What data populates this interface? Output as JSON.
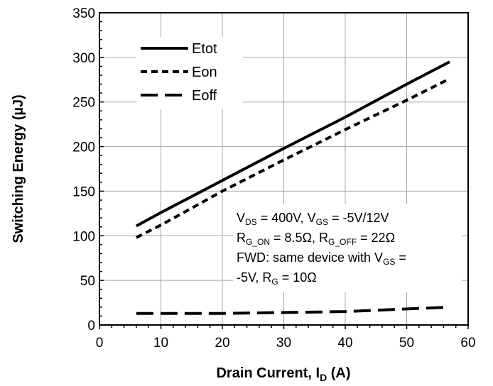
{
  "chart_data": {
    "type": "line",
    "title": "",
    "xlabel": {
      "main": "Drain Current, I",
      "sub": "D",
      "tail": " (A)"
    },
    "ylabel": "Switching Energy (µJ)",
    "xlim": [
      0,
      60
    ],
    "ylim": [
      0,
      350
    ],
    "x_ticks": [
      "0",
      "10",
      "20",
      "30",
      "40",
      "50",
      "60"
    ],
    "y_ticks": [
      "0",
      "50",
      "100",
      "150",
      "200",
      "250",
      "300",
      "350"
    ],
    "x_tick_values": [
      0,
      10,
      20,
      30,
      40,
      50,
      60
    ],
    "y_tick_values": [
      0,
      50,
      100,
      150,
      200,
      250,
      300,
      350
    ],
    "grid": true,
    "legend_position": "top-left",
    "series": [
      {
        "name": "Etot",
        "style": "solid",
        "color": "#000000",
        "x": [
          6,
          10,
          20,
          30,
          40,
          50,
          57
        ],
        "y": [
          111,
          126,
          162,
          198,
          233,
          270,
          295
        ]
      },
      {
        "name": "Eon",
        "style": "dashed",
        "color": "#000000",
        "x": [
          6,
          10,
          20,
          30,
          40,
          50,
          57
        ],
        "y": [
          98,
          112,
          150,
          185,
          219,
          252,
          276
        ]
      },
      {
        "name": "Eoff",
        "style": "long-dash",
        "color": "#000000",
        "x": [
          6,
          10,
          20,
          30,
          40,
          50,
          57
        ],
        "y": [
          13,
          13,
          13,
          14,
          15,
          18,
          20
        ]
      }
    ],
    "annotation": [
      [
        [
          "V",
          ""
        ],
        [
          "DS",
          "sub"
        ],
        [
          " = 400V, V",
          ""
        ],
        [
          "GS",
          "sub"
        ],
        [
          " = -5V/12V",
          ""
        ]
      ],
      [
        [
          "R",
          ""
        ],
        [
          "G_ON",
          "sub"
        ],
        [
          " = 8.5Ω, R",
          ""
        ],
        [
          "G_OFF",
          "sub"
        ],
        [
          " = 22Ω",
          ""
        ]
      ],
      [
        [
          "FWD: same device with V",
          ""
        ],
        [
          "GS",
          "sub"
        ],
        [
          " =",
          ""
        ]
      ],
      [
        [
          "-5V, R",
          ""
        ],
        [
          "G",
          "sub"
        ],
        [
          " = 10Ω",
          ""
        ]
      ]
    ]
  }
}
